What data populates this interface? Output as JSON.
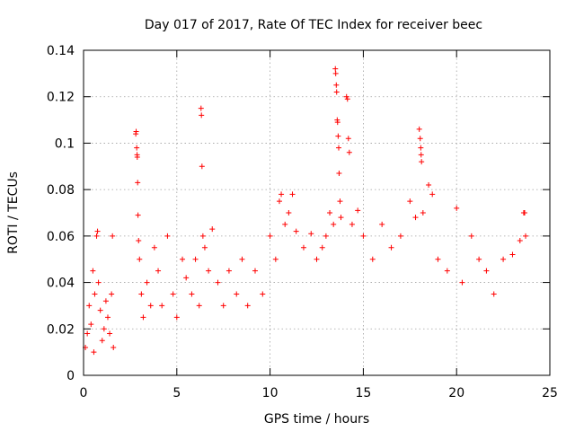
{
  "chart_data": {
    "type": "scatter",
    "title": "Day 017 of 2017, Rate Of TEC Index for receiver beec",
    "xlabel": "GPS time / hours",
    "ylabel": "ROTI / TECUs",
    "xlim": [
      0,
      25
    ],
    "ylim": [
      0,
      0.14
    ],
    "xticks": [
      0,
      5,
      10,
      15,
      20,
      25
    ],
    "xtick_labels": [
      "0",
      "5",
      "10",
      "15",
      "20",
      "25"
    ],
    "yticks": [
      0,
      0.02,
      0.04,
      0.06,
      0.08,
      0.1,
      0.12,
      0.14
    ],
    "ytick_labels": [
      "0",
      "0.02",
      "0.04",
      "0.06",
      "0.08",
      "0.1",
      "0.12",
      "0.14"
    ],
    "grid": true,
    "marker": "+",
    "color": "#ff0000",
    "x_data_range": [
      0,
      23.8
    ],
    "data_gap_hours": [
      1.7,
      2.7
    ],
    "points": [
      [
        0.1,
        0.012
      ],
      [
        0.2,
        0.018
      ],
      [
        0.3,
        0.03
      ],
      [
        0.4,
        0.022
      ],
      [
        0.5,
        0.045
      ],
      [
        0.55,
        0.01
      ],
      [
        0.6,
        0.035
      ],
      [
        0.7,
        0.06
      ],
      [
        0.75,
        0.062
      ],
      [
        0.8,
        0.04
      ],
      [
        0.9,
        0.028
      ],
      [
        1.0,
        0.015
      ],
      [
        1.1,
        0.02
      ],
      [
        1.2,
        0.032
      ],
      [
        1.3,
        0.025
      ],
      [
        1.4,
        0.018
      ],
      [
        1.5,
        0.035
      ],
      [
        1.55,
        0.06
      ],
      [
        1.6,
        0.012
      ],
      [
        2.8,
        0.104
      ],
      [
        2.82,
        0.105
      ],
      [
        2.85,
        0.098
      ],
      [
        2.87,
        0.095
      ],
      [
        2.88,
        0.094
      ],
      [
        2.9,
        0.083
      ],
      [
        2.92,
        0.069
      ],
      [
        2.95,
        0.058
      ],
      [
        3.0,
        0.05
      ],
      [
        3.1,
        0.035
      ],
      [
        3.2,
        0.025
      ],
      [
        3.4,
        0.04
      ],
      [
        3.6,
        0.03
      ],
      [
        3.8,
        0.055
      ],
      [
        4.0,
        0.045
      ],
      [
        4.2,
        0.03
      ],
      [
        4.5,
        0.06
      ],
      [
        4.8,
        0.035
      ],
      [
        5.0,
        0.025
      ],
      [
        5.3,
        0.05
      ],
      [
        5.5,
        0.042
      ],
      [
        5.8,
        0.035
      ],
      [
        6.0,
        0.05
      ],
      [
        6.2,
        0.03
      ],
      [
        6.3,
        0.115
      ],
      [
        6.32,
        0.112
      ],
      [
        6.35,
        0.09
      ],
      [
        6.4,
        0.06
      ],
      [
        6.5,
        0.055
      ],
      [
        6.7,
        0.045
      ],
      [
        6.9,
        0.063
      ],
      [
        7.2,
        0.04
      ],
      [
        7.5,
        0.03
      ],
      [
        7.8,
        0.045
      ],
      [
        8.2,
        0.035
      ],
      [
        8.5,
        0.05
      ],
      [
        8.8,
        0.03
      ],
      [
        9.2,
        0.045
      ],
      [
        9.6,
        0.035
      ],
      [
        10.0,
        0.06
      ],
      [
        10.3,
        0.05
      ],
      [
        10.5,
        0.075
      ],
      [
        10.6,
        0.078
      ],
      [
        10.8,
        0.065
      ],
      [
        11.0,
        0.07
      ],
      [
        11.2,
        0.078
      ],
      [
        11.4,
        0.062
      ],
      [
        11.8,
        0.055
      ],
      [
        12.2,
        0.061
      ],
      [
        12.5,
        0.05
      ],
      [
        12.8,
        0.055
      ],
      [
        13.0,
        0.06
      ],
      [
        13.2,
        0.07
      ],
      [
        13.4,
        0.065
      ],
      [
        13.5,
        0.132
      ],
      [
        13.52,
        0.13
      ],
      [
        13.55,
        0.125
      ],
      [
        13.57,
        0.122
      ],
      [
        13.6,
        0.11
      ],
      [
        13.62,
        0.109
      ],
      [
        13.65,
        0.103
      ],
      [
        13.68,
        0.098
      ],
      [
        13.7,
        0.087
      ],
      [
        13.75,
        0.075
      ],
      [
        13.8,
        0.068
      ],
      [
        14.1,
        0.12
      ],
      [
        14.15,
        0.119
      ],
      [
        14.2,
        0.102
      ],
      [
        14.25,
        0.096
      ],
      [
        14.4,
        0.065
      ],
      [
        14.7,
        0.071
      ],
      [
        15.0,
        0.06
      ],
      [
        15.5,
        0.05
      ],
      [
        16.0,
        0.065
      ],
      [
        16.5,
        0.055
      ],
      [
        17.0,
        0.06
      ],
      [
        17.5,
        0.075
      ],
      [
        17.8,
        0.068
      ],
      [
        18.0,
        0.106
      ],
      [
        18.05,
        0.102
      ],
      [
        18.08,
        0.098
      ],
      [
        18.1,
        0.095
      ],
      [
        18.12,
        0.092
      ],
      [
        18.2,
        0.07
      ],
      [
        18.5,
        0.082
      ],
      [
        18.7,
        0.078
      ],
      [
        19.0,
        0.05
      ],
      [
        19.5,
        0.045
      ],
      [
        20.0,
        0.072
      ],
      [
        20.3,
        0.04
      ],
      [
        20.8,
        0.06
      ],
      [
        21.2,
        0.05
      ],
      [
        21.6,
        0.045
      ],
      [
        22.0,
        0.035
      ],
      [
        22.5,
        0.05
      ],
      [
        23.0,
        0.052
      ],
      [
        23.4,
        0.058
      ],
      [
        23.6,
        0.07
      ],
      [
        23.65,
        0.07
      ],
      [
        23.7,
        0.06
      ]
    ]
  }
}
